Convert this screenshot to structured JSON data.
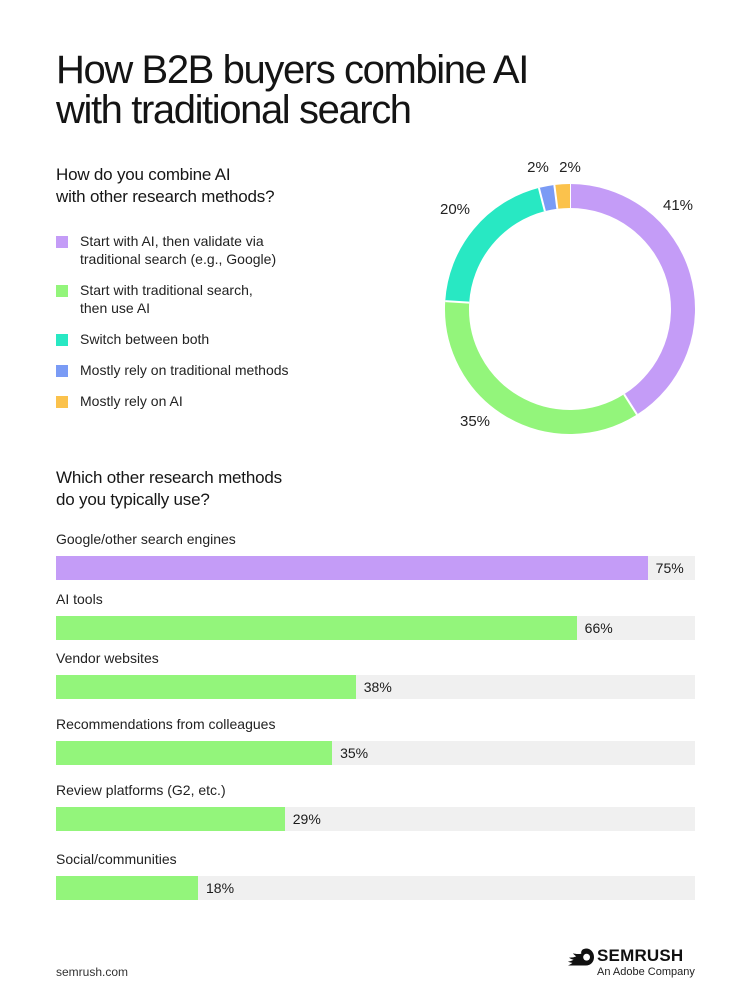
{
  "title_lines": [
    "How B2B buyers combine AI",
    "with traditional search"
  ],
  "donut_section": {
    "question_lines": [
      "How do you combine AI",
      "with other research methods?"
    ],
    "legend": [
      {
        "lines": [
          "Start with AI, then validate via",
          "traditional search (e.g., Google)"
        ],
        "color": "#c49cf7"
      },
      {
        "lines": [
          "Start with traditional search,",
          "then use AI"
        ],
        "color": "#93f57b"
      },
      {
        "lines": [
          "Switch between both"
        ],
        "color": "#28e8c3"
      },
      {
        "lines": [
          "Mostly rely on traditional methods"
        ],
        "color": "#7a9bf5"
      },
      {
        "lines": [
          "Mostly rely on AI"
        ],
        "color": "#fbc24c"
      }
    ]
  },
  "bar_section": {
    "question_lines": [
      "Which other research methods",
      "do you typically use?"
    ]
  },
  "chart_data": [
    {
      "type": "pie",
      "categories": [
        "Start with AI, then validate via traditional search (e.g., Google)",
        "Start with traditional search, then use AI",
        "Switch between both",
        "Mostly rely on traditional methods",
        "Mostly rely on AI"
      ],
      "values": [
        41,
        35,
        20,
        2,
        2
      ],
      "labels": [
        "41%",
        "35%",
        "20%",
        "2%",
        "2%"
      ],
      "colors": [
        "#c49cf7",
        "#93f57b",
        "#28e8c3",
        "#7a9bf5",
        "#fbc24c"
      ],
      "donut": true,
      "legend": "left"
    },
    {
      "type": "bar",
      "orientation": "horizontal",
      "categories": [
        "Google/other search engines",
        "AI tools",
        "Vendor websites",
        "Recommendations from colleagues",
        "Review platforms (G2, etc.)",
        "Social/communities"
      ],
      "values": [
        75,
        66,
        38,
        35,
        29,
        18
      ],
      "labels": [
        "75%",
        "66%",
        "38%",
        "35%",
        "29%",
        "18%"
      ],
      "colors": [
        "#c49cf7",
        "#93f57b",
        "#93f57b",
        "#93f57b",
        "#93f57b",
        "#93f57b"
      ],
      "xlim": [
        0,
        81
      ],
      "track_color": "#f0f0f0"
    }
  ],
  "footer": {
    "url": "semrush.com",
    "brand": "SEMRUSH",
    "brand_sub": "An Adobe Company"
  }
}
